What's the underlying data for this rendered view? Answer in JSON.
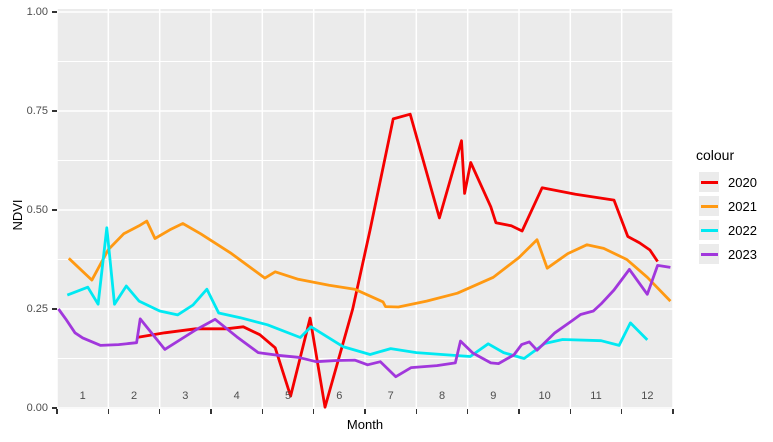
{
  "figure": {
    "y_axis": {
      "title": "NDVI",
      "tick_labels": [
        "1.00",
        "0.75",
        "0.50",
        "0.25",
        "0.00"
      ],
      "tick_values": [
        1.0,
        0.75,
        0.5,
        0.25,
        0.0
      ]
    },
    "x_axis": {
      "title": "Month",
      "tick_labels": [
        "1",
        "2",
        "3",
        "4",
        "5",
        "6",
        "7",
        "8",
        "9",
        "10",
        "11",
        "12"
      ],
      "tick_values": [
        1,
        2,
        3,
        4,
        5,
        6,
        7,
        8,
        9,
        10,
        11,
        12
      ]
    },
    "legend": {
      "title": "colour",
      "entries": [
        {
          "label": "2020",
          "color": "#F50000"
        },
        {
          "label": "2021",
          "color": "#FF9912"
        },
        {
          "label": "2022",
          "color": "#00E9F2"
        },
        {
          "label": "2023",
          "color": "#A137DC"
        }
      ]
    },
    "panel": {
      "background": "#ebebeb",
      "grid_color": "#ffffff"
    }
  },
  "chart_data": {
    "type": "line",
    "title": "",
    "xlabel": "Month",
    "ylabel": "NDVI",
    "xlim": [
      0.5,
      12.5
    ],
    "ylim": [
      0.0,
      1.0
    ],
    "grid": true,
    "legend_title": "colour",
    "legend_position": "right",
    "x_breaks": [
      1,
      2,
      3,
      4,
      5,
      6,
      7,
      8,
      9,
      10,
      11,
      12
    ],
    "y_breaks": [
      0.0,
      0.25,
      0.5,
      0.75,
      1.0
    ],
    "y_minor_breaks": [
      0.125,
      0.375,
      0.625,
      0.875
    ],
    "x_gridline_positions": [
      0.5,
      1.5,
      2.5,
      3.5,
      4.5,
      5.5,
      6.5,
      7.5,
      8.5,
      9.5,
      10.5,
      11.5,
      12.5
    ],
    "series": [
      {
        "name": "2020",
        "color": "#F50000",
        "points": [
          [
            2.05,
            0.178
          ],
          [
            2.6,
            0.19
          ],
          [
            3.2,
            0.2
          ],
          [
            3.8,
            0.2
          ],
          [
            4.13,
            0.205
          ],
          [
            4.45,
            0.185
          ],
          [
            4.75,
            0.152
          ],
          [
            5.05,
            0.03
          ],
          [
            5.43,
            0.227
          ],
          [
            5.72,
            0.002
          ],
          [
            6.26,
            0.25
          ],
          [
            6.6,
            0.45
          ],
          [
            7.05,
            0.73
          ],
          [
            7.38,
            0.742
          ],
          [
            7.95,
            0.48
          ],
          [
            8.38,
            0.675
          ],
          [
            8.44,
            0.542
          ],
          [
            8.56,
            0.62
          ],
          [
            8.95,
            0.508
          ],
          [
            9.05,
            0.468
          ],
          [
            9.35,
            0.46
          ],
          [
            9.56,
            0.447
          ],
          [
            9.95,
            0.556
          ],
          [
            10.6,
            0.54
          ],
          [
            11.35,
            0.525
          ],
          [
            11.62,
            0.433
          ],
          [
            11.85,
            0.417
          ],
          [
            12.05,
            0.399
          ],
          [
            12.2,
            0.37
          ]
        ]
      },
      {
        "name": "2021",
        "color": "#FF9912",
        "points": [
          [
            0.73,
            0.378
          ],
          [
            1.18,
            0.323
          ],
          [
            1.5,
            0.4
          ],
          [
            1.8,
            0.44
          ],
          [
            2.1,
            0.46
          ],
          [
            2.25,
            0.472
          ],
          [
            2.41,
            0.428
          ],
          [
            2.7,
            0.45
          ],
          [
            2.95,
            0.466
          ],
          [
            3.3,
            0.44
          ],
          [
            3.9,
            0.39
          ],
          [
            4.55,
            0.328
          ],
          [
            4.75,
            0.344
          ],
          [
            5.2,
            0.325
          ],
          [
            5.8,
            0.31
          ],
          [
            6.3,
            0.3
          ],
          [
            6.85,
            0.268
          ],
          [
            6.9,
            0.256
          ],
          [
            7.15,
            0.255
          ],
          [
            7.7,
            0.27
          ],
          [
            8.3,
            0.29
          ],
          [
            9.0,
            0.33
          ],
          [
            9.5,
            0.38
          ],
          [
            9.85,
            0.425
          ],
          [
            10.05,
            0.353
          ],
          [
            10.45,
            0.39
          ],
          [
            10.82,
            0.412
          ],
          [
            11.15,
            0.403
          ],
          [
            11.6,
            0.375
          ],
          [
            12.0,
            0.33
          ],
          [
            12.45,
            0.27
          ]
        ]
      },
      {
        "name": "2022",
        "color": "#00E9F2",
        "points": [
          [
            0.7,
            0.285
          ],
          [
            1.1,
            0.305
          ],
          [
            1.3,
            0.262
          ],
          [
            1.47,
            0.455
          ],
          [
            1.62,
            0.262
          ],
          [
            1.85,
            0.308
          ],
          [
            2.1,
            0.27
          ],
          [
            2.5,
            0.245
          ],
          [
            2.85,
            0.235
          ],
          [
            3.15,
            0.26
          ],
          [
            3.42,
            0.3
          ],
          [
            3.65,
            0.24
          ],
          [
            4.07,
            0.228
          ],
          [
            4.6,
            0.21
          ],
          [
            5.24,
            0.178
          ],
          [
            5.45,
            0.205
          ],
          [
            6.07,
            0.155
          ],
          [
            6.6,
            0.135
          ],
          [
            7.0,
            0.15
          ],
          [
            7.5,
            0.14
          ],
          [
            8.0,
            0.135
          ],
          [
            8.55,
            0.13
          ],
          [
            8.9,
            0.162
          ],
          [
            9.2,
            0.14
          ],
          [
            9.6,
            0.125
          ],
          [
            10.0,
            0.163
          ],
          [
            10.35,
            0.173
          ],
          [
            11.1,
            0.17
          ],
          [
            11.45,
            0.158
          ],
          [
            11.67,
            0.215
          ],
          [
            12.0,
            0.172
          ]
        ]
      },
      {
        "name": "2023",
        "color": "#A137DC",
        "points": [
          [
            0.53,
            0.25
          ],
          [
            0.67,
            0.225
          ],
          [
            0.85,
            0.19
          ],
          [
            1.0,
            0.177
          ],
          [
            1.35,
            0.158
          ],
          [
            1.7,
            0.16
          ],
          [
            2.05,
            0.165
          ],
          [
            2.12,
            0.225
          ],
          [
            2.6,
            0.148
          ],
          [
            3.2,
            0.197
          ],
          [
            3.58,
            0.224
          ],
          [
            4.0,
            0.18
          ],
          [
            4.42,
            0.14
          ],
          [
            4.8,
            0.133
          ],
          [
            5.2,
            0.128
          ],
          [
            5.55,
            0.117
          ],
          [
            5.95,
            0.12
          ],
          [
            6.3,
            0.121
          ],
          [
            6.55,
            0.109
          ],
          [
            6.8,
            0.117
          ],
          [
            7.1,
            0.079
          ],
          [
            7.4,
            0.102
          ],
          [
            7.9,
            0.107
          ],
          [
            8.26,
            0.114
          ],
          [
            8.36,
            0.169
          ],
          [
            8.6,
            0.139
          ],
          [
            8.95,
            0.114
          ],
          [
            9.1,
            0.112
          ],
          [
            9.4,
            0.134
          ],
          [
            9.55,
            0.16
          ],
          [
            9.7,
            0.167
          ],
          [
            9.85,
            0.146
          ],
          [
            10.2,
            0.19
          ],
          [
            10.55,
            0.222
          ],
          [
            10.7,
            0.236
          ],
          [
            10.95,
            0.245
          ],
          [
            11.1,
            0.263
          ],
          [
            11.35,
            0.298
          ],
          [
            11.65,
            0.35
          ],
          [
            12.0,
            0.287
          ],
          [
            12.2,
            0.36
          ],
          [
            12.45,
            0.355
          ]
        ]
      }
    ]
  }
}
